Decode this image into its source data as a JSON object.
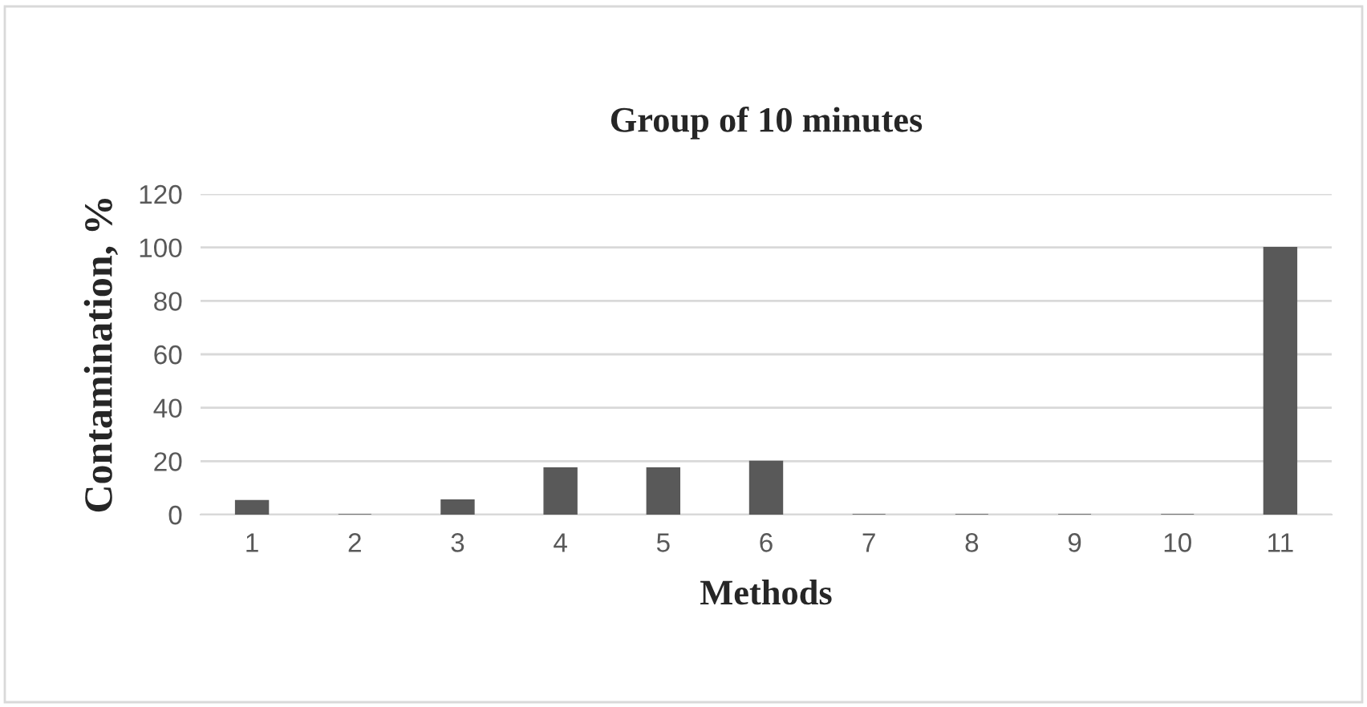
{
  "chart_data": {
    "type": "bar",
    "title": "Group of 10 minutes",
    "xlabel": "Methods",
    "ylabel": "Contamination, %",
    "categories": [
      "1",
      "2",
      "3",
      "4",
      "5",
      "6",
      "7",
      "8",
      "9",
      "10",
      "11"
    ],
    "values": [
      5.3,
      0,
      5.5,
      17.5,
      17.5,
      20,
      0,
      0,
      0,
      0,
      100
    ],
    "color": "#595959",
    "ylim": [
      0,
      120
    ],
    "yticks": [
      0,
      20,
      40,
      60,
      80,
      100,
      120
    ],
    "grid": "y",
    "legend": false
  }
}
